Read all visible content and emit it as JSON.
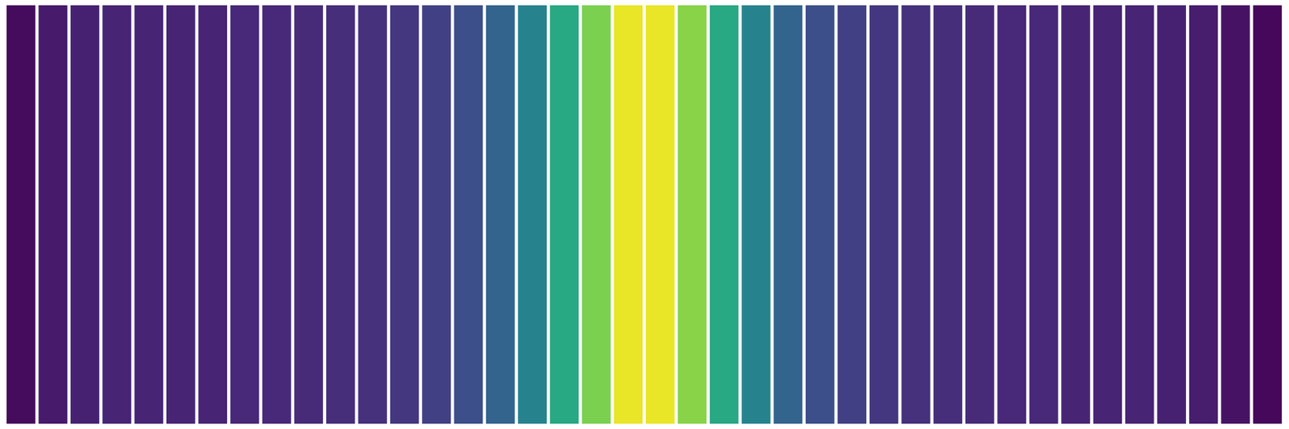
{
  "chart_data": {
    "type": "heatmap",
    "tick_labels": false,
    "grid": false,
    "xlim": [
      0,
      1
    ],
    "ylim": [
      0,
      1
    ],
    "color_range": [
      0,
      1
    ],
    "x": [
      0.0125,
      0.0375,
      0.0625,
      0.0875,
      0.1125,
      0.1375,
      0.1625,
      0.1875,
      0.2125,
      0.2375,
      0.2625,
      0.2875,
      0.3125,
      0.3375,
      0.3625,
      0.3875,
      0.4125,
      0.4375,
      0.4625,
      0.4875,
      0.5125,
      0.5375,
      0.5625,
      0.5875,
      0.6125,
      0.6375,
      0.6625,
      0.6875,
      0.7125,
      0.7375,
      0.7625,
      0.7875,
      0.8125,
      0.8375,
      0.8625,
      0.8875,
      0.9125,
      0.9375,
      0.9625,
      0.9875
    ],
    "values": [
      0.03,
      0.07,
      0.09,
      0.1,
      0.1,
      0.1,
      0.1,
      0.11,
      0.11,
      0.12,
      0.13,
      0.14,
      0.16,
      0.19,
      0.24,
      0.32,
      0.45,
      0.6,
      0.8,
      0.97,
      0.97,
      0.82,
      0.6,
      0.45,
      0.32,
      0.24,
      0.19,
      0.16,
      0.14,
      0.13,
      0.12,
      0.11,
      0.11,
      0.1,
      0.1,
      0.1,
      0.09,
      0.08,
      0.05,
      0.02
    ]
  }
}
